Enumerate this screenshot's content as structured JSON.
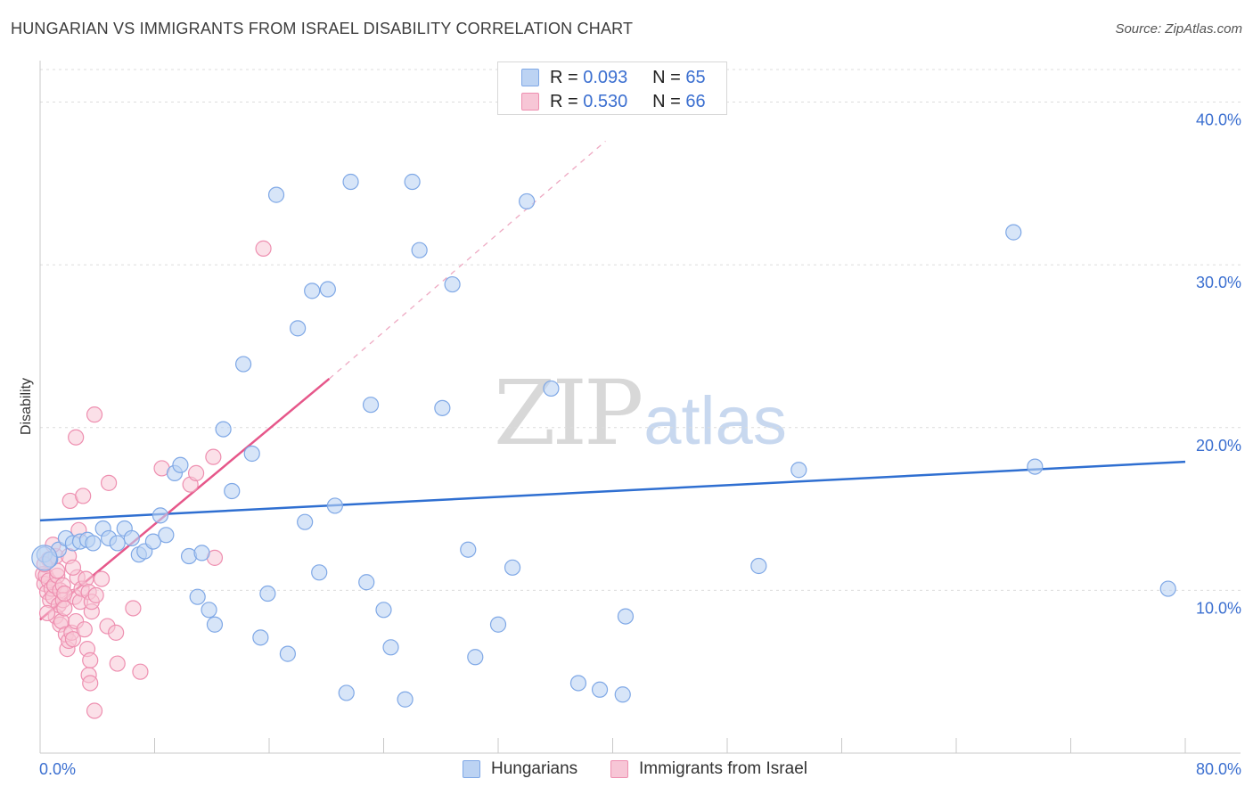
{
  "header": {
    "title": "HUNGARIAN VS IMMIGRANTS FROM ISRAEL DISABILITY CORRELATION CHART",
    "source": "Source: ZipAtlas.com"
  },
  "watermark": {
    "zip": "ZIP",
    "atlas": "atlas"
  },
  "colors": {
    "blue_fill": "#bcd3f3",
    "blue_stroke": "#7fa8e6",
    "blue_line": "#2f6fd1",
    "pink_fill": "#f7c6d6",
    "pink_stroke": "#ee8fb0",
    "pink_line": "#e6578a",
    "grid": "#dcdcdc",
    "tick_text": "#3b6fd0"
  },
  "legend_top": {
    "series": [
      {
        "r_label": "R =",
        "r_value": "0.093",
        "n_label": "N =",
        "n_value": "65"
      },
      {
        "r_label": "R =",
        "r_value": "0.530",
        "n_label": "N =",
        "n_value": "66"
      }
    ]
  },
  "legend_bottom": [
    "Hungarians",
    "Immigrants from Israel"
  ],
  "chart_data": {
    "type": "scatter",
    "title": "HUNGARIAN VS IMMIGRANTS FROM ISRAEL DISABILITY CORRELATION CHART",
    "xlabel": "",
    "ylabel": "Disability",
    "xlim": [
      0,
      80
    ],
    "ylim": [
      0,
      42
    ],
    "x_tick_labels": [
      "0.0%",
      "80.0%"
    ],
    "y_ticks": [
      10,
      20,
      30,
      40
    ],
    "y_tick_labels": [
      "10.0%",
      "20.0%",
      "30.0%",
      "40.0%"
    ],
    "x_minor_ticks": [
      8,
      16,
      24,
      32,
      40,
      48,
      56,
      64,
      72,
      80
    ],
    "series": [
      {
        "name": "Hungarians",
        "r": 0.093,
        "n": 65,
        "trend": {
          "x0": 0,
          "y0": 14.3,
          "x1": 80,
          "y1": 17.9
        },
        "points": [
          [
            0.3,
            12.2
          ],
          [
            0.7,
            11.9
          ],
          [
            1.3,
            12.5
          ],
          [
            1.8,
            13.2
          ],
          [
            2.3,
            12.9
          ],
          [
            2.8,
            13.0
          ],
          [
            3.3,
            13.1
          ],
          [
            3.7,
            12.9
          ],
          [
            4.4,
            13.8
          ],
          [
            4.8,
            13.2
          ],
          [
            5.4,
            12.9
          ],
          [
            5.9,
            13.8
          ],
          [
            6.4,
            13.2
          ],
          [
            6.9,
            12.2
          ],
          [
            7.3,
            12.4
          ],
          [
            7.9,
            13.0
          ],
          [
            8.4,
            14.6
          ],
          [
            8.8,
            13.4
          ],
          [
            9.4,
            17.2
          ],
          [
            9.8,
            17.7
          ],
          [
            10.4,
            12.1
          ],
          [
            11.3,
            12.3
          ],
          [
            11.0,
            9.6
          ],
          [
            11.8,
            8.8
          ],
          [
            12.2,
            7.9
          ],
          [
            12.8,
            19.9
          ],
          [
            13.4,
            16.1
          ],
          [
            14.2,
            23.9
          ],
          [
            14.8,
            18.4
          ],
          [
            15.4,
            7.1
          ],
          [
            15.9,
            9.8
          ],
          [
            16.5,
            34.3
          ],
          [
            17.3,
            6.1
          ],
          [
            18.0,
            26.1
          ],
          [
            18.5,
            14.2
          ],
          [
            19.0,
            28.4
          ],
          [
            19.5,
            11.1
          ],
          [
            20.1,
            28.5
          ],
          [
            20.6,
            15.2
          ],
          [
            21.4,
            3.7
          ],
          [
            21.7,
            35.1
          ],
          [
            22.8,
            10.5
          ],
          [
            23.1,
            21.4
          ],
          [
            24.0,
            8.8
          ],
          [
            24.5,
            6.5
          ],
          [
            25.5,
            3.3
          ],
          [
            26.0,
            35.1
          ],
          [
            26.5,
            30.9
          ],
          [
            28.1,
            21.2
          ],
          [
            28.8,
            28.8
          ],
          [
            29.9,
            12.5
          ],
          [
            30.4,
            5.9
          ],
          [
            32.0,
            7.9
          ],
          [
            33.0,
            11.4
          ],
          [
            34.0,
            33.9
          ],
          [
            35.7,
            22.4
          ],
          [
            37.6,
            4.3
          ],
          [
            39.1,
            3.9
          ],
          [
            40.7,
            3.6
          ],
          [
            40.9,
            8.4
          ],
          [
            50.2,
            11.5
          ],
          [
            53.0,
            17.4
          ],
          [
            68.0,
            32.0
          ],
          [
            69.5,
            17.6
          ],
          [
            78.8,
            10.1
          ]
        ]
      },
      {
        "name": "Immigrants from Israel",
        "r": 0.53,
        "n": 66,
        "trend": {
          "x0": 0,
          "y0": 8.2,
          "x1": 20.2,
          "y1": 23.0
        },
        "trend_dashed": {
          "x0": 20.2,
          "y0": 23.0,
          "x1": 39.5,
          "y1": 37.6
        },
        "points": [
          [
            0.2,
            11.0
          ],
          [
            0.3,
            10.4
          ],
          [
            0.4,
            10.9
          ],
          [
            0.5,
            9.9
          ],
          [
            0.6,
            10.6
          ],
          [
            0.6,
            11.9
          ],
          [
            0.7,
            9.4
          ],
          [
            0.8,
            10.1
          ],
          [
            0.9,
            9.6
          ],
          [
            1.0,
            10.3
          ],
          [
            1.1,
            8.4
          ],
          [
            1.1,
            12.1
          ],
          [
            1.2,
            10.9
          ],
          [
            1.3,
            9.1
          ],
          [
            1.4,
            7.9
          ],
          [
            1.4,
            10.0
          ],
          [
            1.5,
            8.1
          ],
          [
            1.6,
            10.3
          ],
          [
            1.6,
            9.4
          ],
          [
            1.7,
            8.9
          ],
          [
            1.8,
            7.3
          ],
          [
            1.9,
            6.4
          ],
          [
            2.0,
            6.9
          ],
          [
            2.0,
            12.1
          ],
          [
            2.1,
            15.5
          ],
          [
            2.2,
            7.4
          ],
          [
            2.3,
            7.0
          ],
          [
            2.4,
            9.6
          ],
          [
            2.5,
            8.1
          ],
          [
            2.5,
            19.4
          ],
          [
            2.6,
            10.8
          ],
          [
            2.7,
            13.7
          ],
          [
            2.8,
            9.3
          ],
          [
            2.9,
            10.1
          ],
          [
            3.0,
            15.8
          ],
          [
            3.1,
            7.6
          ],
          [
            3.2,
            10.7
          ],
          [
            3.3,
            6.4
          ],
          [
            3.4,
            9.9
          ],
          [
            3.4,
            4.8
          ],
          [
            3.5,
            5.7
          ],
          [
            3.5,
            4.3
          ],
          [
            3.6,
            8.7
          ],
          [
            3.6,
            9.3
          ],
          [
            3.8,
            2.6
          ],
          [
            3.8,
            20.8
          ],
          [
            3.9,
            9.7
          ],
          [
            4.3,
            10.7
          ],
          [
            4.7,
            7.8
          ],
          [
            4.8,
            16.6
          ],
          [
            5.3,
            7.4
          ],
          [
            5.4,
            5.5
          ],
          [
            6.5,
            8.9
          ],
          [
            7.0,
            5.0
          ],
          [
            8.5,
            17.5
          ],
          [
            10.5,
            16.5
          ],
          [
            10.9,
            17.2
          ],
          [
            12.1,
            18.2
          ],
          [
            12.2,
            12.0
          ],
          [
            15.6,
            31.0
          ],
          [
            0.3,
            11.6
          ],
          [
            0.9,
            12.8
          ],
          [
            1.7,
            9.8
          ],
          [
            2.3,
            11.4
          ],
          [
            0.5,
            8.6
          ],
          [
            1.2,
            11.2
          ]
        ]
      }
    ]
  }
}
